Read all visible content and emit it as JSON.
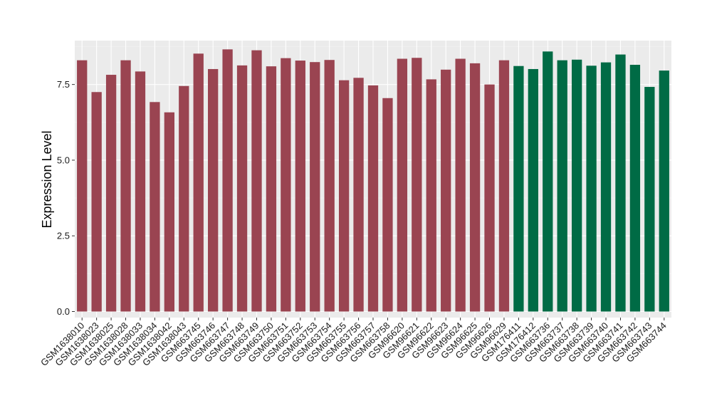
{
  "chart_data": {
    "type": "bar",
    "title": "",
    "xlabel": "",
    "ylabel": "Expression Level",
    "ylim": [
      -0.2,
      8.95
    ],
    "yticks": [
      0.0,
      2.5,
      5.0,
      7.5
    ],
    "ytick_labels": [
      "0.0",
      "2.5",
      "5.0",
      "7.5"
    ],
    "grid": true,
    "legend": "none",
    "categories": [
      "GSM1638010",
      "GSM1638023",
      "GSM1638025",
      "GSM1638028",
      "GSM1638033",
      "GSM1638034",
      "GSM1638042",
      "GSM1638043",
      "GSM663745",
      "GSM663746",
      "GSM663747",
      "GSM663748",
      "GSM663749",
      "GSM663750",
      "GSM663751",
      "GSM663752",
      "GSM663753",
      "GSM663754",
      "GSM663755",
      "GSM663756",
      "GSM663757",
      "GSM663758",
      "GSM96620",
      "GSM96621",
      "GSM96622",
      "GSM96623",
      "GSM96624",
      "GSM96625",
      "GSM96626",
      "GSM96629",
      "GSM176411",
      "GSM176412",
      "GSM663736",
      "GSM663737",
      "GSM663738",
      "GSM663739",
      "GSM663740",
      "GSM663741",
      "GSM663742",
      "GSM663743",
      "GSM663744"
    ],
    "values": [
      8.3,
      7.25,
      7.82,
      8.3,
      7.93,
      6.92,
      6.58,
      7.45,
      8.52,
      8.01,
      8.66,
      8.13,
      8.63,
      8.1,
      8.37,
      8.29,
      8.24,
      8.31,
      7.64,
      7.72,
      7.47,
      7.05,
      8.35,
      8.38,
      7.67,
      7.99,
      8.35,
      8.2,
      7.5,
      8.3,
      8.11,
      8.01,
      8.59,
      8.3,
      8.32,
      8.12,
      8.23,
      8.49,
      8.15,
      7.42,
      7.96
    ],
    "bar_colors": [
      "#9A4451",
      "#9A4451",
      "#9A4451",
      "#9A4451",
      "#9A4451",
      "#9A4451",
      "#9A4451",
      "#9A4451",
      "#9A4451",
      "#9A4451",
      "#9A4451",
      "#9A4451",
      "#9A4451",
      "#9A4451",
      "#9A4451",
      "#9A4451",
      "#9A4451",
      "#9A4451",
      "#9A4451",
      "#9A4451",
      "#9A4451",
      "#9A4451",
      "#9A4451",
      "#9A4451",
      "#9A4451",
      "#9A4451",
      "#9A4451",
      "#9A4451",
      "#9A4451",
      "#9A4451",
      "#006B45",
      "#006B45",
      "#006B45",
      "#006B45",
      "#006B45",
      "#006B45",
      "#006B45",
      "#006B45",
      "#006B45",
      "#006B45",
      "#006B45"
    ],
    "colors": {
      "panel_background": "#EBEBEB",
      "grid_major": "#FFFFFF",
      "grid_minor": "#F5F5F5",
      "group_1": "#9A4451",
      "group_2": "#006B45"
    }
  }
}
